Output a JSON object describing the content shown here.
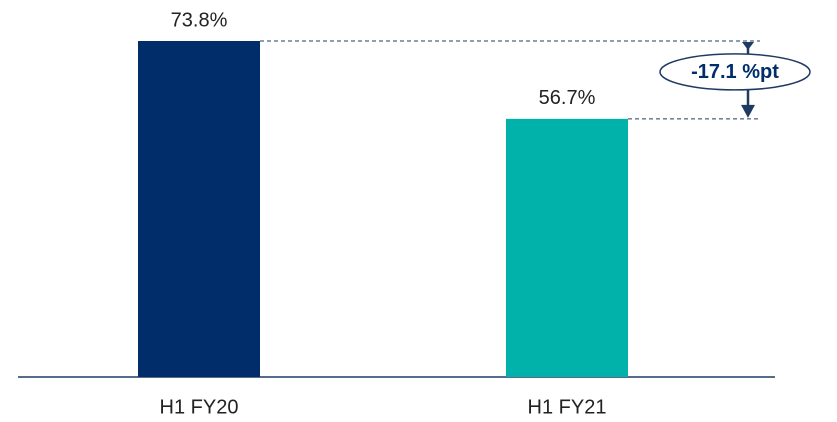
{
  "chart_data": {
    "type": "bar",
    "categories": [
      "H1 FY20",
      "H1 FY21"
    ],
    "values": [
      73.8,
      56.7
    ],
    "value_labels": [
      "73.8%",
      "56.7%"
    ],
    "colors": [
      "#012d6b",
      "#00b2a9"
    ],
    "annotation": "-17.1 %pt"
  }
}
